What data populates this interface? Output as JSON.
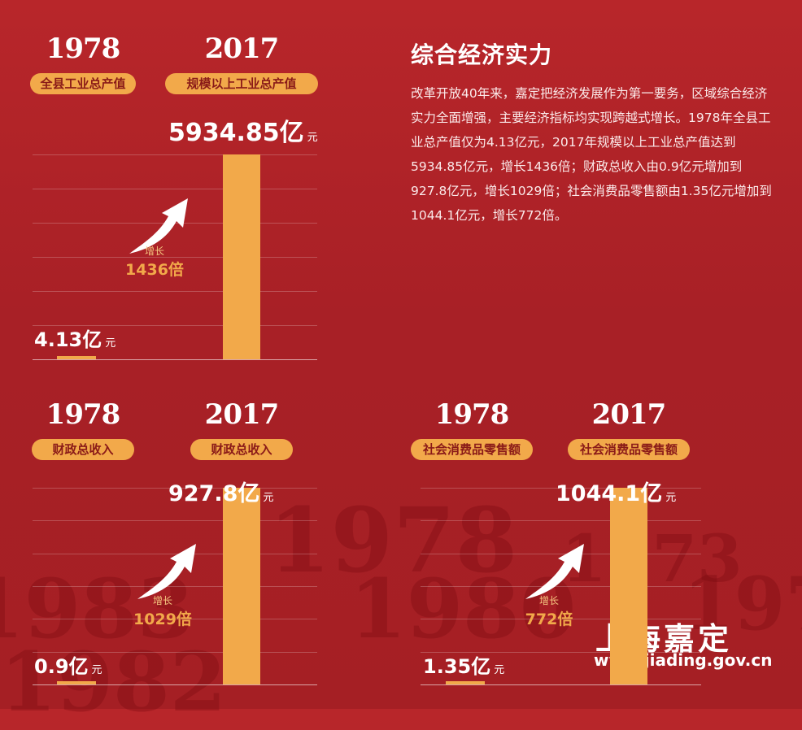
{
  "title": "综合经济实力",
  "body_text": "改革开放40年来，嘉定把经济发展作为第一要务，区域综合经济实力全面增强，主要经济指标均实现跨越式增长。1978年全县工业总产值仅为4.13亿元，2017年规模以上工业总产值达到5934.85亿元，增长1436倍；财政总收入由0.9亿元增加到927.8亿元，增长1029倍；社会消费品零售额由1.35亿元增加到1044.1亿元，增长772倍。",
  "logo": {
    "name": "上海嘉定",
    "url": "www.jiading.gov.cn"
  },
  "colors": {
    "background": "#a82026",
    "bar": "#f2a94a",
    "pill_text": "#8a1a18"
  },
  "background_numbers": [
    "1978",
    "1983",
    "1980",
    "1978",
    "1982",
    "1973"
  ],
  "chart_data": [
    {
      "type": "bar",
      "categories": [
        "1978",
        "2017"
      ],
      "category_labels": [
        "全县工业总产值",
        "规模以上工业总产值"
      ],
      "values": [
        4.13,
        5934.85
      ],
      "value_labels": [
        "4.13亿",
        "5934.85亿"
      ],
      "unit": "元",
      "growth_label": "增长",
      "growth_value": "1436倍"
    },
    {
      "type": "bar",
      "categories": [
        "1978",
        "2017"
      ],
      "category_labels": [
        "财政总收入",
        "财政总收入"
      ],
      "values": [
        0.9,
        927.8
      ],
      "value_labels": [
        "0.9亿",
        "927.8亿"
      ],
      "unit": "元",
      "growth_label": "增长",
      "growth_value": "1029倍"
    },
    {
      "type": "bar",
      "categories": [
        "1978",
        "2017"
      ],
      "category_labels": [
        "社会消费品零售额",
        "社会消费品零售额"
      ],
      "values": [
        1.35,
        1044.1
      ],
      "value_labels": [
        "1.35亿",
        "1044.1亿"
      ],
      "unit": "元",
      "growth_label": "增长",
      "growth_value": "772倍"
    }
  ]
}
